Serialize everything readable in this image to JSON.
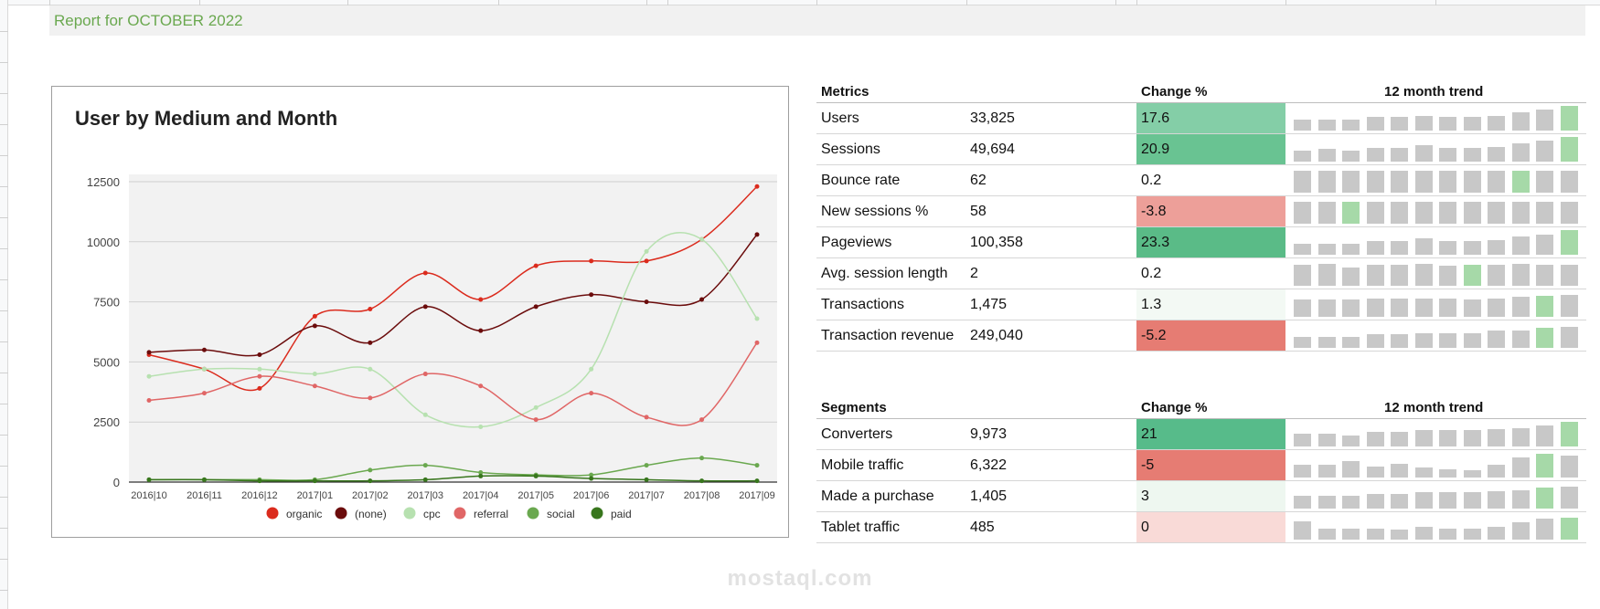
{
  "report": {
    "title": "Report for OCTOBER 2022"
  },
  "chart": {
    "title": "User by Medium and Month"
  },
  "chart_data": {
    "type": "line",
    "title": "User by Medium and Month",
    "xlabel": "",
    "ylabel": "",
    "ylim": [
      0,
      12500
    ],
    "yticks": [
      0,
      2500,
      5000,
      7500,
      10000,
      12500
    ],
    "grid": true,
    "legend_position": "bottom",
    "categories": [
      "2016|10",
      "2016|11",
      "2016|12",
      "2017|01",
      "2017|02",
      "2017|03",
      "2017|04",
      "2017|05",
      "2017|06",
      "2017|07",
      "2017|08",
      "2017|09"
    ],
    "series": [
      {
        "name": "organic",
        "color": "#db2b1d",
        "values": [
          5300,
          4700,
          3900,
          6900,
          7200,
          8700,
          7600,
          9000,
          9200,
          9200,
          10100,
          12300
        ]
      },
      {
        "name": "(none)",
        "color": "#6b0c0c",
        "values": [
          5400,
          5500,
          5300,
          6500,
          5800,
          7300,
          6300,
          7300,
          7800,
          7500,
          7600,
          10300
        ]
      },
      {
        "name": "cpc",
        "color": "#b7e1b0",
        "values": [
          4400,
          4700,
          4700,
          4500,
          4700,
          2800,
          2300,
          3100,
          4700,
          9600,
          10100,
          6800
        ]
      },
      {
        "name": "referral",
        "color": "#e06666",
        "values": [
          3400,
          3700,
          4400,
          4000,
          3500,
          4500,
          4000,
          2600,
          3700,
          2700,
          2600,
          5800
        ]
      },
      {
        "name": "social",
        "color": "#6aa84f",
        "values": [
          100,
          100,
          100,
          100,
          500,
          700,
          400,
          300,
          300,
          700,
          1000,
          700
        ]
      },
      {
        "name": "paid",
        "color": "#38761d",
        "values": [
          100,
          100,
          50,
          50,
          50,
          100,
          250,
          250,
          150,
          100,
          50,
          50
        ]
      }
    ]
  },
  "metrics": {
    "headers": {
      "metric": "Metrics",
      "change": "Change %",
      "trend": "12 month trend"
    },
    "rows": [
      {
        "name": "Users",
        "value": "33,825",
        "change": "17.6",
        "change_color": "#84cea7",
        "trend": [
          0.45,
          0.45,
          0.45,
          0.55,
          0.55,
          0.6,
          0.55,
          0.55,
          0.6,
          0.75,
          0.85,
          1.0
        ],
        "highlight_index": 11
      },
      {
        "name": "Sessions",
        "value": "49,694",
        "change": "20.9",
        "change_color": "#69c392",
        "trend": [
          0.45,
          0.5,
          0.45,
          0.55,
          0.55,
          0.65,
          0.55,
          0.55,
          0.6,
          0.75,
          0.85,
          1.0
        ],
        "highlight_index": 11
      },
      {
        "name": "Bounce rate",
        "value": "62",
        "change": "0.2",
        "change_color": "#ffffff",
        "trend": [
          0.9,
          0.9,
          0.9,
          0.9,
          0.9,
          0.9,
          0.9,
          0.9,
          0.9,
          0.9,
          0.9,
          0.9
        ],
        "highlight_index": 9
      },
      {
        "name": "New sessions %",
        "value": "58",
        "change": "-3.8",
        "change_color": "#ed9f99",
        "trend": [
          0.9,
          0.9,
          0.9,
          0.9,
          0.9,
          0.9,
          0.9,
          0.9,
          0.9,
          0.9,
          0.9,
          0.9
        ],
        "highlight_index": 2
      },
      {
        "name": "Pageviews",
        "value": "100,358",
        "change": "23.3",
        "change_color": "#5abb87",
        "trend": [
          0.45,
          0.45,
          0.45,
          0.55,
          0.55,
          0.65,
          0.55,
          0.55,
          0.6,
          0.75,
          0.8,
          1.0
        ],
        "highlight_index": 11
      },
      {
        "name": "Avg. session length",
        "value": "2",
        "change": "0.2",
        "change_color": "#ffffff",
        "trend": [
          0.85,
          0.9,
          0.75,
          0.85,
          0.85,
          0.9,
          0.8,
          0.85,
          0.85,
          0.9,
          0.85,
          0.85
        ],
        "highlight_index": 7
      },
      {
        "name": "Transactions",
        "value": "1,475",
        "change": "1.3",
        "change_color": "#f3f9f4",
        "trend": [
          0.7,
          0.7,
          0.7,
          0.75,
          0.75,
          0.75,
          0.75,
          0.7,
          0.75,
          0.8,
          0.85,
          0.9
        ],
        "highlight_index": 10
      },
      {
        "name": "Transaction revenue",
        "value": "249,040",
        "change": "-5.2",
        "change_color": "#e67c73",
        "trend": [
          0.45,
          0.45,
          0.45,
          0.55,
          0.55,
          0.6,
          0.6,
          0.6,
          0.7,
          0.7,
          0.8,
          0.85
        ],
        "highlight_index": 10
      }
    ]
  },
  "segments": {
    "headers": {
      "metric": "Segments",
      "change": "Change %",
      "trend": "12 month trend"
    },
    "rows": [
      {
        "name": "Converters",
        "value": "9,973",
        "change": "21",
        "change_color": "#57bb8a",
        "trend": [
          0.5,
          0.5,
          0.45,
          0.6,
          0.6,
          0.65,
          0.65,
          0.65,
          0.7,
          0.75,
          0.85,
          1.0
        ],
        "highlight_index": 11
      },
      {
        "name": "Mobile traffic",
        "value": "6,322",
        "change": "-5",
        "change_color": "#e67c73",
        "trend": [
          0.5,
          0.5,
          0.65,
          0.45,
          0.55,
          0.4,
          0.35,
          0.3,
          0.5,
          0.8,
          0.95,
          0.9
        ],
        "highlight_index": 10
      },
      {
        "name": "Made a purchase",
        "value": "1,405",
        "change": "3",
        "change_color": "#eef7f0",
        "trend": [
          0.5,
          0.5,
          0.5,
          0.6,
          0.6,
          0.65,
          0.65,
          0.65,
          0.7,
          0.75,
          0.85,
          0.9
        ],
        "highlight_index": 10
      },
      {
        "name": "Tablet traffic",
        "value": "485",
        "change": "0",
        "change_color": "#f9dad7",
        "trend": [
          0.75,
          0.45,
          0.45,
          0.45,
          0.4,
          0.5,
          0.45,
          0.45,
          0.5,
          0.7,
          0.85,
          0.9
        ],
        "highlight_index": 11
      }
    ]
  },
  "watermark": {
    "text": "mostaql.com"
  },
  "colors": {
    "accent_green": "#6aa84f",
    "trend_bar": "#c8c8c8",
    "trend_highlight": "#a6d9a8",
    "gridline": "#cfcfcf",
    "plot_bg": "#f2f2f2"
  }
}
